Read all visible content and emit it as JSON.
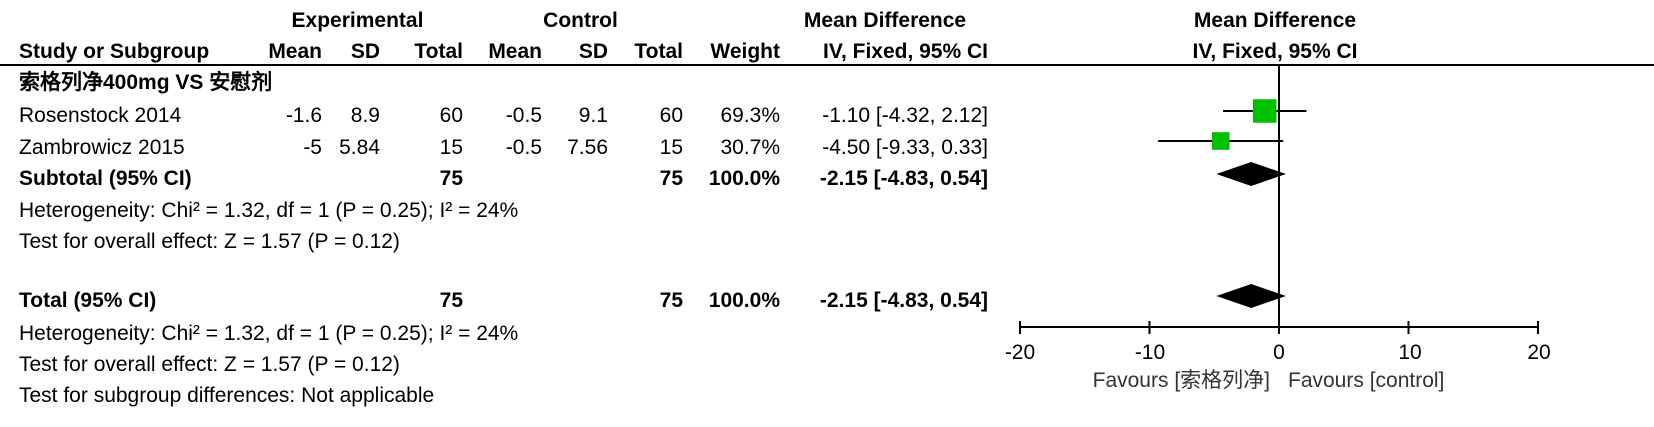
{
  "header": {
    "exp_group": "Experimental",
    "ctrl_group": "Control",
    "md_group_table": "Mean Difference",
    "md_group_plot": "Mean Difference",
    "cols": {
      "study": "Study or Subgroup",
      "exp_mean": "Mean",
      "exp_sd": "SD",
      "exp_total": "Total",
      "ctrl_mean": "Mean",
      "ctrl_sd": "SD",
      "ctrl_total": "Total",
      "weight": "Weight",
      "md_method": "IV, Fixed, 95% CI"
    },
    "plot_method": "IV, Fixed, 95% CI"
  },
  "subgroup": {
    "title": "索格列净400mg VS 安慰剂",
    "studies": [
      {
        "name": "Rosenstock 2014",
        "exp_mean": "-1.6",
        "exp_sd": "8.9",
        "exp_total": "60",
        "ctrl_mean": "-0.5",
        "ctrl_sd": "9.1",
        "ctrl_total": "60",
        "weight": "69.3%",
        "ci_text": "-1.10 [-4.32, 2.12]"
      },
      {
        "name": "Zambrowicz 2015",
        "exp_mean": "-5",
        "exp_sd": "5.84",
        "exp_total": "15",
        "ctrl_mean": "-0.5",
        "ctrl_sd": "7.56",
        "ctrl_total": "15",
        "weight": "30.7%",
        "ci_text": "-4.50 [-9.33, 0.33]"
      }
    ],
    "subtotal": {
      "label": "Subtotal (95% CI)",
      "exp_total": "75",
      "ctrl_total": "75",
      "weight": "100.0%",
      "ci_text": "-2.15 [-4.83, 0.54]"
    },
    "heterogeneity": "Heterogeneity: Chi² = 1.32, df = 1 (P = 0.25); I² = 24%",
    "overall_effect": "Test for overall effect: Z = 1.57 (P = 0.12)"
  },
  "total": {
    "label": "Total (95% CI)",
    "exp_total": "75",
    "ctrl_total": "75",
    "weight": "100.0%",
    "ci_text": "-2.15 [-4.83, 0.54]",
    "heterogeneity": "Heterogeneity: Chi² = 1.32, df = 1 (P = 0.25); I² = 24%",
    "overall_effect": "Test for overall effect: Z = 1.57 (P = 0.12)",
    "subgroup_diff": "Test for subgroup differences: Not applicable"
  },
  "axis": {
    "ticks": [
      "-20",
      "-10",
      "0",
      "10",
      "20"
    ],
    "favours_left": "Favours [索格列净]",
    "favours_right": "Favours [control]"
  },
  "chart_data": {
    "type": "forest",
    "xlim": [
      -20,
      20
    ],
    "xticks": [
      -20,
      -10,
      0,
      10,
      20
    ],
    "studies": [
      {
        "name": "Rosenstock 2014",
        "md": -1.1,
        "lower": -4.32,
        "upper": 2.12,
        "weight": 69.3
      },
      {
        "name": "Zambrowicz 2015",
        "md": -4.5,
        "lower": -9.33,
        "upper": 0.33,
        "weight": 30.7
      }
    ],
    "subtotal": {
      "md": -2.15,
      "lower": -4.83,
      "upper": 0.54
    },
    "total": {
      "md": -2.15,
      "lower": -4.83,
      "upper": 0.54
    },
    "colors": {
      "study_marker": "#00c000",
      "pooled_marker": "#000000"
    }
  }
}
